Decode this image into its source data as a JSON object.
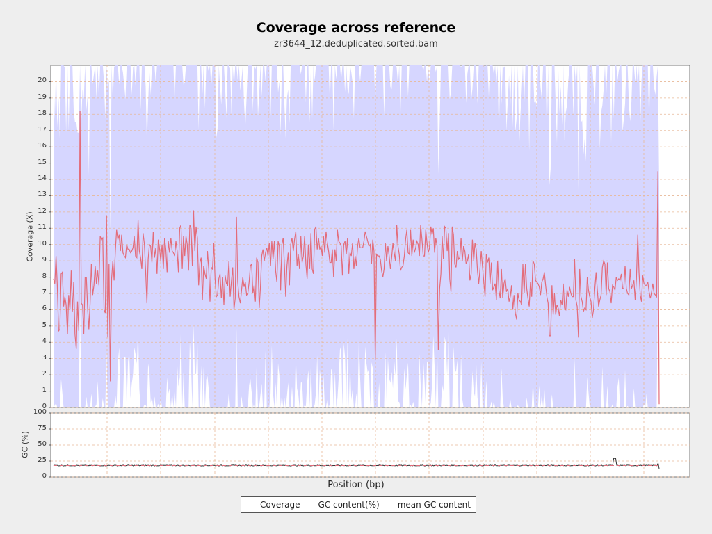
{
  "chart_data": [
    {
      "type": "line",
      "title": "Coverage across reference",
      "subtitle": "zr3644_12.deduplicated.sorted.bam",
      "ylabel": "Coverage (X)",
      "xlabel": "Position (bp)",
      "ylim": [
        0,
        21
      ],
      "yticks": [
        0,
        1,
        2,
        3,
        4,
        5,
        6,
        7,
        8,
        9,
        10,
        11,
        12,
        13,
        14,
        15,
        16,
        17,
        18,
        19,
        20
      ],
      "grid": true,
      "series": [
        {
          "name": "Coverage",
          "color": "#e36c7a",
          "values": [
            7.9,
            7.6,
            9.3,
            7.5,
            4.7,
            4.8,
            8.2,
            8.3,
            6.2,
            6.8,
            6.3,
            4.5,
            6.9,
            6.0,
            8.4,
            5.9,
            7.7,
            4.5,
            3.6,
            6.5,
            4.7,
            18.2,
            6.4,
            6.3,
            4.5,
            8.0,
            8.0,
            6.1,
            4.8,
            6.4,
            8.8,
            6.9,
            7.5,
            8.7,
            7.6,
            8.4,
            7.5,
            10.5,
            10.3,
            10.4,
            6.0,
            5.8,
            11.8,
            4.3,
            8.8,
            1.6,
            7.9,
            9.0,
            7.8,
            9.6,
            10.9,
            10.3,
            10.6,
            9.6,
            10.6,
            9.5,
            9.3,
            9.2,
            10.0,
            9.7,
            9.7,
            9.5,
            9.6,
            9.8,
            10.5,
            9.3,
            9.2,
            11.5,
            9.6,
            9.2,
            8.5,
            10.7,
            10.0,
            8.3,
            6.4,
            9.1,
            10.0,
            9.9,
            8.9,
            10.8,
            9.2,
            9.8,
            8.2,
            10.3,
            9.8,
            9.0,
            10.0,
            8.5,
            10.4,
            9.7,
            8.3,
            10.2,
            9.5,
            10.4,
            9.6,
            9.5,
            9.3,
            10.2,
            9.6,
            8.3,
            11.0,
            11.2,
            8.5,
            10.5,
            9.3,
            10.5,
            10.0,
            8.4,
            11.2,
            11.0,
            8.7,
            12.1,
            9.6,
            11.1,
            10.4,
            7.5,
            8.9,
            9.2,
            6.6,
            8.7,
            8.2,
            7.9,
            9.6,
            8.5,
            6.5,
            8.6,
            8.5,
            10.1,
            7.9,
            6.8,
            6.9,
            7.9,
            8.2,
            6.7,
            8.0,
            6.3,
            8.1,
            7.6,
            7.5,
            9.0,
            6.8,
            7.8,
            8.6,
            6.0,
            6.7,
            11.7,
            7.7,
            6.8,
            6.4,
            7.2,
            8.0,
            7.4,
            7.7,
            6.9,
            7.0,
            7.7,
            8.7,
            8.8,
            7.0,
            7.5,
            6.5,
            9.2,
            8.9,
            6.1,
            7.4,
            9.3,
            9.7,
            9.0,
            9.5,
            9.8,
            9.3,
            10.1,
            8.7,
            10.2,
            9.1,
            10.2,
            8.4,
            7.7,
            10.2,
            9.9,
            7.2,
            10.0,
            10.4,
            8.7,
            6.8,
            8.7,
            9.5,
            7.5,
            10.0,
            10.4,
            9.6,
            10.3,
            10.8,
            8.7,
            9.4,
            8.5,
            10.5,
            8.9,
            9.3,
            10.5,
            8.8,
            7.9,
            10.0,
            8.5,
            10.7,
            8.5,
            8.2,
            10.9,
            11.1,
            9.7,
            10.4,
            9.7,
            9.9,
            9.3,
            10.5,
            9.5,
            10.8,
            10.1,
            9.6,
            8.9,
            8.9,
            9.7,
            8.0,
            9.7,
            9.0,
            10.9,
            10.2,
            10.1,
            9.9,
            8.1,
            10.0,
            10.2,
            9.4,
            10.4,
            8.2,
            9.5,
            9.3,
            10.1,
            8.5,
            9.3,
            8.7,
            9.9,
            10.4,
            9.8,
            9.8,
            9.8,
            10.2,
            10.8,
            10.5,
            10.2,
            9.9,
            10.0,
            8.8,
            10.3,
            9.6,
            2.9,
            9.4,
            9.3,
            9.3,
            9.1,
            8.4,
            8.0,
            8.5,
            10.1,
            9.0,
            9.9,
            9.3,
            8.5,
            9.2,
            10.1,
            9.5,
            9.0,
            11.2,
            9.9,
            9.4,
            8.4,
            8.6,
            8.7,
            9.3,
            10.3,
            10.9,
            9.5,
            9.4,
            10.9,
            9.3,
            10.3,
            9.5,
            9.8,
            10.2,
            10.0,
            9.3,
            11.2,
            10.3,
            9.3,
            9.3,
            10.9,
            10.1,
            9.5,
            9.8,
            11.1,
            10.6,
            11.0,
            9.5,
            10.4,
            9.9,
            3.5,
            7.3,
            8.2,
            10.5,
            9.1,
            11.1,
            11.0,
            9.6,
            10.7,
            7.9,
            7.1,
            11.1,
            10.6,
            8.8,
            8.6,
            9.6,
            9.1,
            9.2,
            10.4,
            9.0,
            9.9,
            9.6,
            8.8,
            9.0,
            9.4,
            7.8,
            8.2,
            10.3,
            9.0,
            10.1,
            9.7,
            8.4,
            7.6,
            8.5,
            9.6,
            8.6,
            7.7,
            6.8,
            9.4,
            8.9,
            9.2,
            7.6,
            8.9,
            7.2,
            7.4,
            7.6,
            6.6,
            9.0,
            7.2,
            6.7,
            8.5,
            6.7,
            7.6,
            7.9,
            7.1,
            7.3,
            6.5,
            6.8,
            7.5,
            6.0,
            6.9,
            5.8,
            5.4,
            7.0,
            6.6,
            6.5,
            6.3,
            8.8,
            7.0,
            8.8,
            7.3,
            6.7,
            6.2,
            7.7,
            6.8,
            9.0,
            8.8,
            7.8,
            7.7,
            7.6,
            7.4,
            6.9,
            7.7,
            7.9,
            8.3,
            7.5,
            6.8,
            6.4,
            4.4,
            4.4,
            7.5,
            5.7,
            7.0,
            5.7,
            6.3,
            6.1,
            5.6,
            6.6,
            6.3,
            7.6,
            6.1,
            6.0,
            7.2,
            6.8,
            7.4,
            7.0,
            6.8,
            6.8,
            9.1,
            6.6,
            6.2,
            4.3,
            8.5,
            6.8,
            6.5,
            5.9,
            6.1,
            6.0,
            8.0,
            7.2,
            6.8,
            6.5,
            5.5,
            6.0,
            7.3,
            8.3,
            7.2,
            6.2,
            6.6,
            6.9,
            8.6,
            9.0,
            8.8,
            6.9,
            8.9,
            7.3,
            7.1,
            6.4,
            7.5,
            7.4,
            7.2,
            8.0,
            7.8,
            7.9,
            7.8,
            8.2,
            7.3,
            7.3,
            8.7,
            7.3,
            7.0,
            6.9,
            8.5,
            7.3,
            7.5,
            7.8,
            6.6,
            7.9,
            10.6,
            8.3,
            6.9,
            6.5,
            8.1,
            7.6,
            7.5,
            7.5,
            7.7,
            7.1,
            6.7,
            7.1,
            7.6,
            7.0,
            6.9,
            6.8,
            14.5,
            0.2
          ]
        }
      ]
    },
    {
      "type": "line",
      "ylabel": "GC (%)",
      "ylim": [
        0,
        100
      ],
      "yticks": [
        0,
        25,
        50,
        75,
        100
      ],
      "grid": true,
      "series": [
        {
          "name": "GC content(%)",
          "color": "#333333",
          "value_range": [
            16,
            30
          ],
          "typical_value": 18
        },
        {
          "name": "mean GC content",
          "color": "#e36c7a",
          "dashed": true
        }
      ]
    }
  ],
  "legend": {
    "items": [
      {
        "label": "Coverage",
        "color": "#e36c7a",
        "style": "solid"
      },
      {
        "label": "GC content(%)",
        "color": "#555555",
        "style": "solid"
      },
      {
        "label": "mean GC content",
        "color": "#e36c7a",
        "style": "dashed"
      }
    ]
  },
  "colors": {
    "band_fill": "#d6d6ff",
    "grid": "#e8b896",
    "coverage": "#e36c7a",
    "gc": "#333333"
  }
}
